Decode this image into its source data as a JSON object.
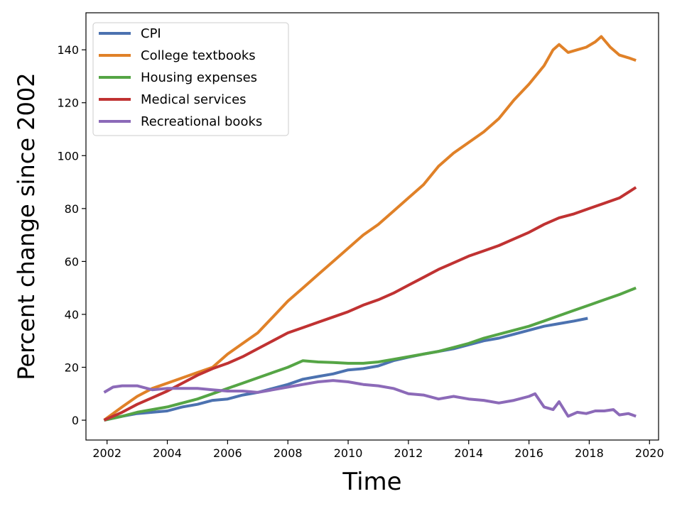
{
  "chart_data": {
    "type": "line",
    "xlabel": "Time",
    "ylabel": "Percent change since 2002",
    "xlim": [
      2001.3,
      2020.3
    ],
    "ylim": [
      -7.5,
      154
    ],
    "xticks": [
      2002,
      2004,
      2006,
      2008,
      2010,
      2012,
      2014,
      2016,
      2018,
      2020
    ],
    "yticks": [
      0,
      20,
      40,
      60,
      80,
      100,
      120,
      140
    ],
    "grid": false,
    "legend": "top-left",
    "series": [
      {
        "name": "CPI",
        "color": "#4c72b0",
        "x": [
          2001.9,
          2002.5,
          2003.0,
          2003.5,
          2004.0,
          2004.5,
          2005.0,
          2005.5,
          2006.0,
          2006.5,
          2007.0,
          2007.5,
          2008.0,
          2008.5,
          2009.0,
          2009.5,
          2010.0,
          2010.5,
          2011.0,
          2011.5,
          2012.0,
          2012.5,
          2013.0,
          2013.5,
          2014.0,
          2014.5,
          2015.0,
          2015.5,
          2016.0,
          2016.5,
          2017.0,
          2017.5,
          2017.95
        ],
        "y": [
          0,
          1.5,
          2.5,
          3.0,
          3.5,
          5.0,
          6.0,
          7.5,
          8.0,
          9.5,
          10.5,
          12.0,
          13.5,
          15.5,
          16.5,
          17.5,
          19.0,
          19.5,
          20.5,
          22.5,
          23.8,
          25.0,
          26.0,
          27.0,
          28.5,
          30.0,
          31.0,
          32.5,
          34.0,
          35.5,
          36.5,
          37.5,
          38.5
        ]
      },
      {
        "name": "College textbooks",
        "color": "#e08128",
        "x": [
          2001.9,
          2002.5,
          2003.0,
          2003.5,
          2004.0,
          2004.5,
          2005.0,
          2005.5,
          2006.0,
          2006.5,
          2007.0,
          2007.5,
          2008.0,
          2008.5,
          2009.0,
          2009.5,
          2010.0,
          2010.5,
          2011.0,
          2011.5,
          2012.0,
          2012.5,
          2013.0,
          2013.5,
          2014.0,
          2014.5,
          2015.0,
          2015.5,
          2016.0,
          2016.5,
          2016.8,
          2017.0,
          2017.3,
          2017.6,
          2017.9,
          2018.2,
          2018.4,
          2018.7,
          2019.0,
          2019.3,
          2019.55
        ],
        "y": [
          0,
          5,
          9,
          12,
          14,
          16,
          18,
          20,
          25,
          29,
          33,
          39,
          45,
          50,
          55,
          60,
          65,
          70,
          74,
          79,
          84,
          89,
          96,
          101,
          105,
          109,
          114,
          121,
          127,
          134,
          140,
          142,
          139,
          140,
          141,
          143,
          145,
          141,
          138,
          137,
          136
        ]
      },
      {
        "name": "Housing expenses",
        "color": "#55a545",
        "x": [
          2001.9,
          2002.5,
          2003.0,
          2003.5,
          2004.0,
          2004.5,
          2005.0,
          2005.5,
          2006.0,
          2006.5,
          2007.0,
          2007.5,
          2008.0,
          2008.5,
          2009.0,
          2009.5,
          2010.0,
          2010.5,
          2011.0,
          2011.5,
          2012.0,
          2012.5,
          2013.0,
          2013.5,
          2014.0,
          2014.5,
          2015.0,
          2015.5,
          2016.0,
          2016.5,
          2017.0,
          2017.5,
          2018.0,
          2018.5,
          2019.0,
          2019.55
        ],
        "y": [
          0,
          1.5,
          3.0,
          4.0,
          5.0,
          6.5,
          8.0,
          10.0,
          12.0,
          14.0,
          16.0,
          18.0,
          20.0,
          22.5,
          22.0,
          21.8,
          21.5,
          21.5,
          22.0,
          23.0,
          24.0,
          25.0,
          26.0,
          27.5,
          29.0,
          31.0,
          32.5,
          34.0,
          35.5,
          37.5,
          39.5,
          41.5,
          43.5,
          45.5,
          47.5,
          50.0
        ]
      },
      {
        "name": "Medical services",
        "color": "#c03232",
        "x": [
          2001.9,
          2002.5,
          2003.0,
          2003.5,
          2004.0,
          2004.5,
          2005.0,
          2005.5,
          2006.0,
          2006.5,
          2007.0,
          2007.5,
          2008.0,
          2008.5,
          2009.0,
          2009.5,
          2010.0,
          2010.5,
          2011.0,
          2011.5,
          2012.0,
          2012.5,
          2013.0,
          2013.5,
          2014.0,
          2014.5,
          2015.0,
          2015.5,
          2016.0,
          2016.5,
          2017.0,
          2017.5,
          2018.0,
          2018.5,
          2019.0,
          2019.55
        ],
        "y": [
          0,
          3,
          6,
          8.5,
          11,
          14,
          17,
          19.5,
          21.5,
          24,
          27,
          30,
          33,
          35,
          37,
          39,
          41,
          43.5,
          45.5,
          48,
          51,
          54,
          57,
          59.5,
          62,
          64,
          66,
          68.5,
          71,
          74,
          76.5,
          78,
          80,
          82,
          84,
          88
        ]
      },
      {
        "name": "Recreational books",
        "color": "#8c6ab8",
        "x": [
          2001.9,
          2002.2,
          2002.5,
          2003.0,
          2003.5,
          2004.0,
          2004.5,
          2005.0,
          2005.5,
          2006.0,
          2006.5,
          2007.0,
          2007.5,
          2008.0,
          2008.5,
          2009.0,
          2009.5,
          2010.0,
          2010.5,
          2011.0,
          2011.5,
          2012.0,
          2012.5,
          2013.0,
          2013.5,
          2014.0,
          2014.5,
          2015.0,
          2015.5,
          2016.0,
          2016.2,
          2016.5,
          2016.8,
          2017.0,
          2017.3,
          2017.6,
          2017.9,
          2018.2,
          2018.5,
          2018.8,
          2019.0,
          2019.3,
          2019.55
        ],
        "y": [
          10.5,
          12.5,
          13,
          13,
          11.5,
          12,
          12,
          12,
          11.5,
          11,
          11,
          10.5,
          11.5,
          12.5,
          13.5,
          14.5,
          15,
          14.5,
          13.5,
          13,
          12,
          10,
          9.5,
          8,
          9,
          8,
          7.5,
          6.5,
          7.5,
          9,
          10,
          5,
          4,
          7,
          1.5,
          3,
          2.5,
          3.5,
          3.5,
          4,
          2,
          2.5,
          1.5
        ]
      }
    ]
  }
}
